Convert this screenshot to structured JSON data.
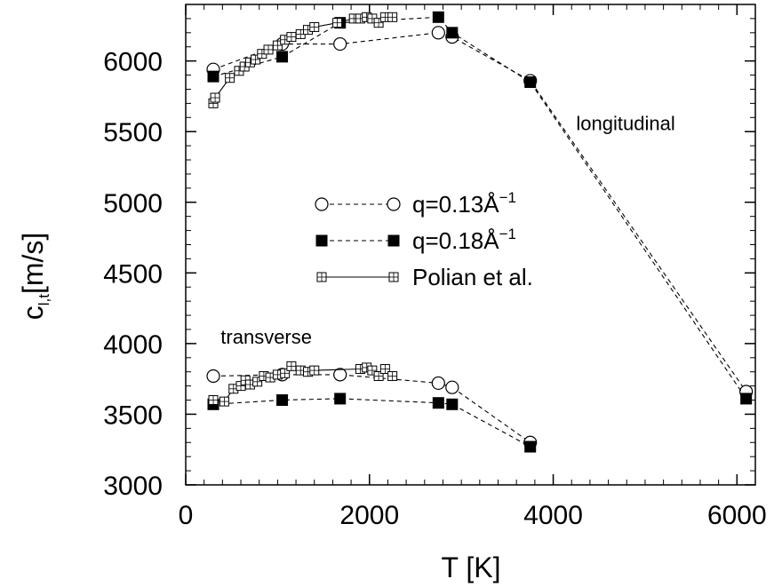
{
  "chart_data": {
    "type": "line",
    "title": "",
    "xlabel": "T [K]",
    "ylabel_main": "c",
    "ylabel_sub": "l,t",
    "ylabel_units": "[m/s]",
    "xlim": [
      0,
      6200
    ],
    "ylim": [
      3000,
      6400
    ],
    "x_ticks": [
      0,
      2000,
      4000,
      6000
    ],
    "y_ticks": [
      3000,
      3500,
      4000,
      4500,
      5000,
      5500,
      6000
    ],
    "x_ticks_minor_step": 200,
    "y_ticks_minor_step": 100,
    "grid": false,
    "legend_position": "center-right",
    "annotations": [
      {
        "text": "longitudinal",
        "x": 4250,
        "y": 5510
      },
      {
        "text": "transverse",
        "x": 380,
        "y": 4000
      }
    ],
    "series": [
      {
        "name": "q=0.13Å",
        "name_sup": "−1",
        "group": "longitudinal",
        "marker": "open-circle",
        "line": "dashed",
        "x": [
          300,
          1050,
          1680,
          2750,
          2900,
          3750,
          6100
        ],
        "y": [
          5940,
          6120,
          6120,
          6200,
          6170,
          5860,
          3660
        ]
      },
      {
        "name": "q=0.18Å",
        "name_sup": "−1",
        "group": "longitudinal",
        "marker": "filled-square",
        "line": "dashed",
        "x": [
          300,
          1050,
          1680,
          2750,
          2900,
          3750,
          6100
        ],
        "y": [
          5890,
          6030,
          6270,
          6310,
          6200,
          5850,
          3610
        ]
      },
      {
        "name": "Polian et al.",
        "group": "longitudinal",
        "marker": "open-square-plus",
        "line": "solid",
        "x": [
          300,
          320,
          480,
          580,
          640,
          700,
          760,
          830,
          900,
          1000,
          1080,
          1150,
          1250,
          1330,
          1400,
          1650,
          1830,
          1900,
          1970,
          2030,
          2100,
          2170,
          2250
        ],
        "y": [
          5700,
          5740,
          5880,
          5930,
          5960,
          5990,
          6010,
          6050,
          6080,
          6110,
          6150,
          6170,
          6190,
          6220,
          6240,
          6270,
          6300,
          6300,
          6310,
          6300,
          6270,
          6310,
          6310
        ]
      },
      {
        "name": "q=0.13Å",
        "name_sup": "−1",
        "group": "transverse",
        "marker": "open-circle",
        "line": "dashed",
        "x": [
          300,
          1050,
          1680,
          2750,
          2900,
          3750
        ],
        "y": [
          3770,
          3780,
          3780,
          3720,
          3690,
          3300
        ]
      },
      {
        "name": "q=0.18Å",
        "name_sup": "−1",
        "group": "transverse",
        "marker": "filled-square",
        "line": "dashed",
        "x": [
          300,
          1050,
          1680,
          2750,
          2900,
          3750
        ],
        "y": [
          3570,
          3600,
          3610,
          3580,
          3570,
          3270
        ]
      },
      {
        "name": "Polian et al.",
        "group": "transverse",
        "marker": "open-square-plus",
        "line": "solid",
        "x": [
          300,
          420,
          520,
          600,
          650,
          700,
          780,
          850,
          920,
          1000,
          1080,
          1150,
          1250,
          1330,
          1400,
          1900,
          1970,
          2030,
          2100,
          2170,
          2250
        ],
        "y": [
          3600,
          3590,
          3680,
          3700,
          3740,
          3710,
          3730,
          3770,
          3760,
          3780,
          3790,
          3840,
          3810,
          3800,
          3810,
          3820,
          3830,
          3810,
          3770,
          3820,
          3770
        ]
      }
    ],
    "legend": [
      {
        "label": "q=0.13Å",
        "sup": "−1",
        "marker": "open-circle",
        "line": "dashed"
      },
      {
        "label": "q=0.18Å",
        "sup": "−1",
        "marker": "filled-square",
        "line": "dashed"
      },
      {
        "label": "Polian et al.",
        "sup": "",
        "marker": "open-square-plus",
        "line": "solid"
      }
    ]
  }
}
